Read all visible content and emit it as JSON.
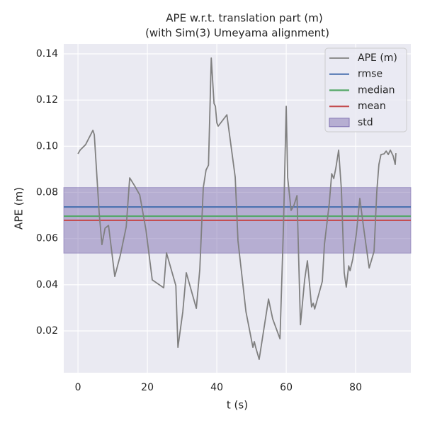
{
  "chart_data": {
    "type": "line",
    "title": "APE w.r.t. translation part (m)",
    "subtitle": "(with Sim(3) Umeyama alignment)",
    "xlabel": "t (s)",
    "ylabel": "APE (m)",
    "x": [
      0,
      0.6,
      2.2,
      4.3,
      4.7,
      5.3,
      6.1,
      6.9,
      7.8,
      8.8,
      9.6,
      10.6,
      12.2,
      13.9,
      14.9,
      16.3,
      17.8,
      19.6,
      21.4,
      24.7,
      25.5,
      28.2,
      28.8,
      30.2,
      31.2,
      34.1,
      35.1,
      36.1,
      36.9,
      37.6,
      38.4,
      39.2,
      39.6,
      40.0,
      40.4,
      42.9,
      45.3,
      46.1,
      48.4,
      50.4,
      50.8,
      51.2,
      52.2,
      54.9,
      56.1,
      58.2,
      59.2,
      60.0,
      60.4,
      61.4,
      62.2,
      63.1,
      64.1,
      65.3,
      66.1,
      67.3,
      67.8,
      68.2,
      70.4,
      71.0,
      72.4,
      73.1,
      73.7,
      74.3,
      75.1,
      75.9,
      76.7,
      77.3,
      78.0,
      78.4,
      79.2,
      80.2,
      81.2,
      82.4,
      83.9,
      85.3,
      86.1,
      86.7,
      87.3,
      88.2,
      88.8,
      89.4,
      90.0,
      90.8,
      91.4,
      91.6
    ],
    "series": [
      {
        "name": "APE (m)",
        "color": "#808080",
        "values": [
          0.0967,
          0.0983,
          0.1007,
          0.1069,
          0.105,
          0.0906,
          0.0712,
          0.0574,
          0.0645,
          0.0657,
          0.0559,
          0.0436,
          0.0528,
          0.0651,
          0.0863,
          0.0829,
          0.0789,
          0.0636,
          0.0421,
          0.0387,
          0.0538,
          0.0396,
          0.0129,
          0.0283,
          0.0452,
          0.0298,
          0.0467,
          0.082,
          0.0897,
          0.0918,
          0.1382,
          0.1185,
          0.1173,
          0.1102,
          0.1087,
          0.1136,
          0.0866,
          0.059,
          0.0283,
          0.0129,
          0.0154,
          0.0129,
          0.0077,
          0.0338,
          0.0252,
          0.0166,
          0.0651,
          0.1173,
          0.0866,
          0.0722,
          0.0743,
          0.0786,
          0.0227,
          0.0421,
          0.0504,
          0.0304,
          0.032,
          0.0295,
          0.0415,
          0.0574,
          0.0752,
          0.0881,
          0.086,
          0.0906,
          0.0983,
          0.0811,
          0.0452,
          0.039,
          0.0482,
          0.0461,
          0.0513,
          0.062,
          0.0774,
          0.0636,
          0.0473,
          0.0544,
          0.0805,
          0.0921,
          0.0964,
          0.0967,
          0.0979,
          0.0964,
          0.0983,
          0.0958,
          0.0921,
          0.097
        ]
      }
    ],
    "stats": [
      {
        "name": "rmse",
        "color": "#4c72b0",
        "value": 0.0737
      },
      {
        "name": "median",
        "color": "#55a868",
        "value": 0.0697
      },
      {
        "name": "mean",
        "color": "#c44e52",
        "value": 0.0679
      }
    ],
    "std": {
      "name": "std",
      "color": "#8172b2",
      "value": 0.0142
    },
    "xlim": [
      -4.1,
      95.9
    ],
    "ylim": [
      0.0019,
      0.1443
    ],
    "xticks": [
      0,
      20,
      40,
      60,
      80
    ],
    "yticks": [
      0.02,
      0.04,
      0.06,
      0.08,
      {
        "value": 0.1,
        "label": "0.10"
      },
      0.12,
      0.14
    ],
    "grid": true,
    "legend": "upper right"
  }
}
